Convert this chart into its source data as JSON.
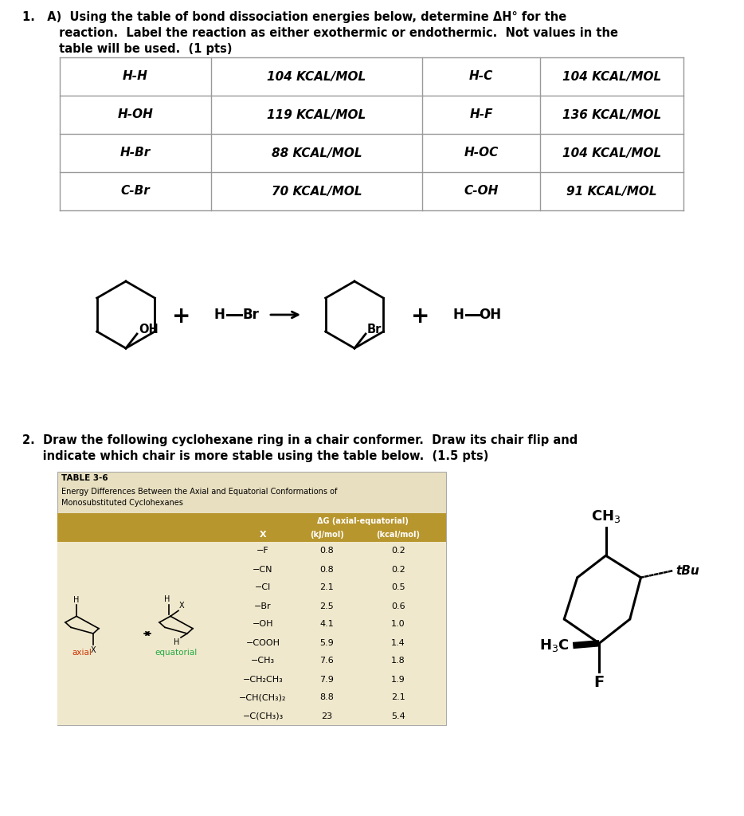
{
  "title_lines": [
    "1.   A)  Using the table of bond dissociation energies below, determine ΔH° for the",
    "         reaction.  Label the reaction as either exothermic or endothermic.  Not values in the",
    "         table will be used.  (1 pts)"
  ],
  "table1_rows": [
    [
      "H-H",
      "104 KCAL/MOL",
      "H-C",
      "104 KCAL/MOL"
    ],
    [
      "H-OH",
      "119 KCAL/MOL",
      "H-F",
      "136 KCAL/MOL"
    ],
    [
      "H-Br",
      "88 KCAL/MOL",
      "H-OC",
      "104 KCAL/MOL"
    ],
    [
      "C-Br",
      "70 KCAL/MOL",
      "C-OH",
      "91 KCAL/MOL"
    ]
  ],
  "q2_lines": [
    "2.  Draw the following cyclohexane ring in a chair conformer.  Draw its chair flip and",
    "     indicate which chair is more stable using the table below.  (1.5 pts)"
  ],
  "table2_title": "TABLE 3-6",
  "table2_subtitle1": "Energy Differences Between the Axial and Equatorial Conformations of",
  "table2_subtitle2": "Monosubstituted Cyclohexanes",
  "table2_rows": [
    [
      "−F",
      "0.8",
      "0.2"
    ],
    [
      "−CN",
      "0.8",
      "0.2"
    ],
    [
      "−Cl",
      "2.1",
      "0.5"
    ],
    [
      "−Br",
      "2.5",
      "0.6"
    ],
    [
      "−OH",
      "4.1",
      "1.0"
    ],
    [
      "−COOH",
      "5.9",
      "1.4"
    ],
    [
      "−CH₃",
      "7.6",
      "1.8"
    ],
    [
      "−CH₂CH₃",
      "7.9",
      "1.9"
    ],
    [
      "−CH(CH₃)₂",
      "8.8",
      "2.1"
    ],
    [
      "−C(CH₃)₃",
      "23",
      "5.4"
    ]
  ],
  "bg_color": "#ffffff",
  "table1_line_color": "#999999",
  "table2_title_bg": "#e8dfc0",
  "table2_hdr_bg": "#b8962e",
  "table2_body_bg": "#f0e8cc",
  "table2_border_color": "#aaaaaa",
  "axial_label_color": "#cc3300",
  "equatorial_label_color": "#22aa44"
}
